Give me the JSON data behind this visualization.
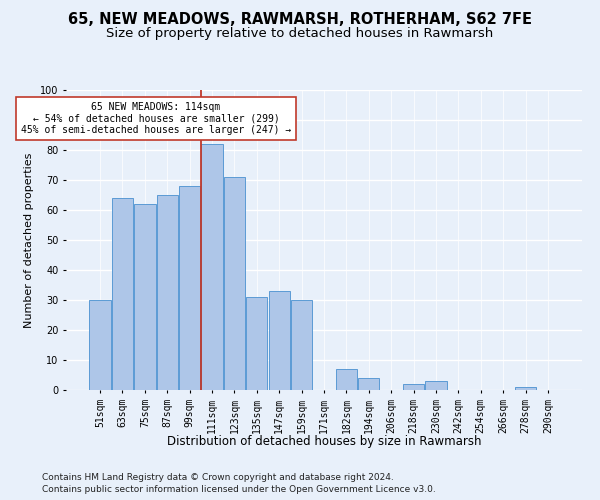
{
  "title1": "65, NEW MEADOWS, RAWMARSH, ROTHERHAM, S62 7FE",
  "title2": "Size of property relative to detached houses in Rawmarsh",
  "xlabel": "Distribution of detached houses by size in Rawmarsh",
  "ylabel": "Number of detached properties",
  "footnote1": "Contains HM Land Registry data © Crown copyright and database right 2024.",
  "footnote2": "Contains public sector information licensed under the Open Government Licence v3.0.",
  "bar_labels": [
    "51sqm",
    "63sqm",
    "75sqm",
    "87sqm",
    "99sqm",
    "111sqm",
    "123sqm",
    "135sqm",
    "147sqm",
    "159sqm",
    "171sqm",
    "182sqm",
    "194sqm",
    "206sqm",
    "218sqm",
    "230sqm",
    "242sqm",
    "254sqm",
    "266sqm",
    "278sqm",
    "290sqm"
  ],
  "bar_values": [
    30,
    64,
    62,
    65,
    68,
    82,
    71,
    31,
    33,
    30,
    0,
    7,
    4,
    0,
    2,
    3,
    0,
    0,
    0,
    1,
    0
  ],
  "bar_color": "#aec6e8",
  "bar_edge_color": "#5b9bd5",
  "vline_index": 5,
  "vline_color": "#c0392b",
  "annotation_text": "65 NEW MEADOWS: 114sqm\n← 54% of detached houses are smaller (299)\n45% of semi-detached houses are larger (247) →",
  "annotation_box_color": "#ffffff",
  "annotation_box_edge": "#c0392b",
  "ylim": [
    0,
    100
  ],
  "yticks": [
    0,
    10,
    20,
    30,
    40,
    50,
    60,
    70,
    80,
    90,
    100
  ],
  "background_color": "#e8f0fa",
  "grid_color": "#ffffff",
  "title1_fontsize": 10.5,
  "title2_fontsize": 9.5,
  "xlabel_fontsize": 8.5,
  "ylabel_fontsize": 8,
  "tick_fontsize": 7,
  "footnote_fontsize": 6.5
}
